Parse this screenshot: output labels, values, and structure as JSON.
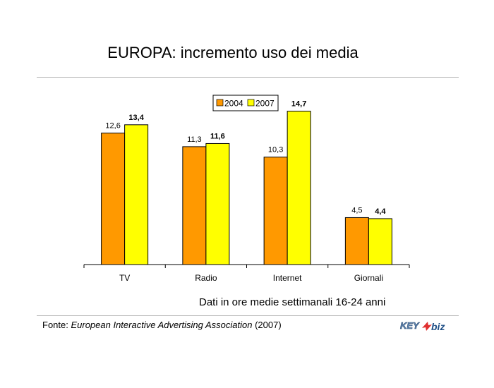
{
  "slide": {
    "title": "EUROPA: incremento uso dei media",
    "note": "Dati in ore medie settimanali 16-24 anni",
    "source_prefix": "Fonte: ",
    "source_name": "European Interactive Advertising Association",
    "source_year": " (2007)",
    "logo_key": "KEY",
    "logo_biz": "biz"
  },
  "chart_data": {
    "type": "bar",
    "categories": [
      "TV",
      "Radio",
      "Internet",
      "Giornali"
    ],
    "series": [
      {
        "name": "2004",
        "values": [
          12.6,
          11.3,
          10.3,
          4.5
        ],
        "labels": [
          "12,6",
          "11,3",
          "10,3",
          "4,5"
        ],
        "color": "#ff9900"
      },
      {
        "name": "2007",
        "values": [
          13.4,
          11.6,
          14.7,
          4.4
        ],
        "labels": [
          "13,4",
          "11,6",
          "14,7",
          "4,4"
        ],
        "color": "#ffff00"
      }
    ],
    "ylim": [
      0,
      16.5
    ],
    "legend_position": "top-center",
    "grid": false
  }
}
